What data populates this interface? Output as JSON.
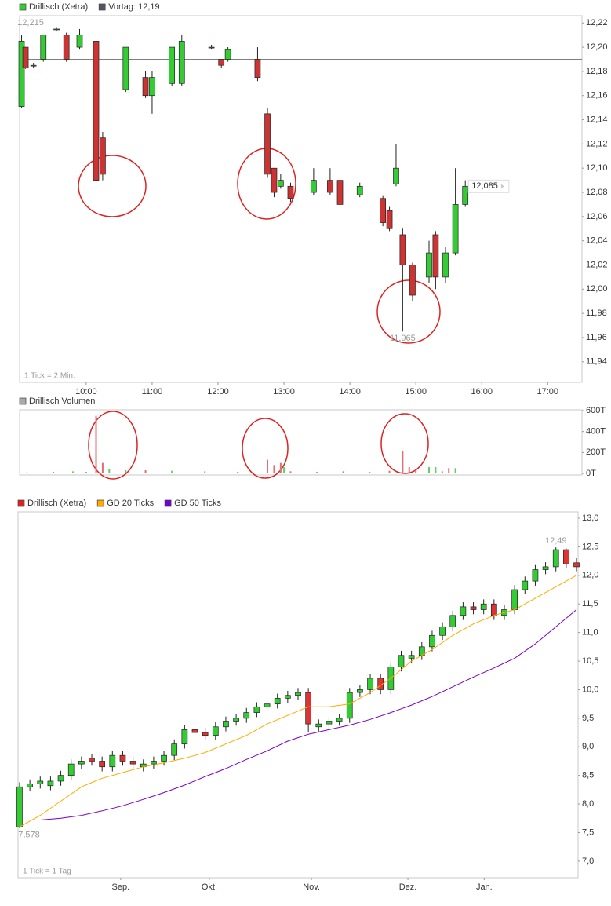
{
  "chart_data": [
    {
      "type": "candlestick",
      "legend": [
        {
          "label": "Drillisch (Xetra)",
          "color": "#33cc33"
        },
        {
          "label": "Vortag: 12,19",
          "color": "#555566"
        }
      ],
      "reference_line": 12.19,
      "note": "1 Tick = 2 Min.",
      "up_color": "#33cc33",
      "down_color": "#cc3333",
      "xlim": [
        8.99,
        17.52
      ],
      "xticks": [
        {
          "value": 10,
          "label": "10:00"
        },
        {
          "value": 11,
          "label": "11:00"
        },
        {
          "value": 12,
          "label": "12:00"
        },
        {
          "value": 13,
          "label": "13:00"
        },
        {
          "value": 14,
          "label": "14:00"
        },
        {
          "value": 15,
          "label": "15:00"
        },
        {
          "value": 16,
          "label": "16:00"
        },
        {
          "value": 17,
          "label": "17:00"
        }
      ],
      "ylim": [
        11.923,
        12.226
      ],
      "yticks": [
        {
          "value": 12.22,
          "label": "12,22"
        },
        {
          "value": 12.2,
          "label": "12,20"
        },
        {
          "value": 12.18,
          "label": "12,18"
        },
        {
          "value": 12.16,
          "label": "12,16"
        },
        {
          "value": 12.14,
          "label": "12,14"
        },
        {
          "value": 12.12,
          "label": "12,12"
        },
        {
          "value": 12.1,
          "label": "12,10"
        },
        {
          "value": 12.08,
          "label": "12,08"
        },
        {
          "value": 12.06,
          "label": "12,06"
        },
        {
          "value": 12.04,
          "label": "12,04"
        },
        {
          "value": 12.02,
          "label": "12,02"
        },
        {
          "value": 12.0,
          "label": "12,00"
        },
        {
          "value": 11.98,
          "label": "11,98"
        },
        {
          "value": 11.96,
          "label": "11,96"
        },
        {
          "value": 11.94,
          "label": "11,94"
        }
      ],
      "x": [
        9.02,
        9.08,
        9.2,
        9.35,
        9.55,
        9.7,
        9.9,
        10.15,
        10.25,
        10.6,
        10.9,
        11.0,
        11.3,
        11.45,
        11.9,
        12.05,
        12.15,
        12.6,
        12.75,
        12.85,
        12.95,
        13.1,
        13.45,
        13.7,
        13.85,
        14.15,
        14.5,
        14.6,
        14.7,
        14.8,
        14.95,
        15.2,
        15.3,
        15.45,
        15.6,
        15.75
      ],
      "open": [
        12.151,
        12.2,
        12.185,
        12.19,
        12.215,
        12.21,
        12.2,
        12.205,
        12.125,
        12.165,
        12.175,
        12.16,
        12.17,
        12.17,
        12.2,
        12.19,
        12.19,
        12.19,
        12.145,
        12.1,
        12.085,
        12.085,
        12.08,
        12.09,
        12.09,
        12.078,
        12.075,
        12.065,
        12.087,
        12.045,
        12.02,
        12.01,
        12.045,
        12.01,
        12.03,
        12.07
      ],
      "high": [
        12.21,
        12.2,
        12.187,
        12.21,
        12.216,
        12.212,
        12.215,
        12.21,
        12.13,
        12.2,
        12.18,
        12.18,
        12.2,
        12.21,
        12.202,
        12.19,
        12.2,
        12.2,
        12.15,
        12.1,
        12.095,
        12.088,
        12.1,
        12.1,
        12.092,
        12.088,
        12.077,
        12.068,
        12.12,
        12.05,
        12.022,
        12.04,
        12.048,
        12.035,
        12.1,
        12.09
      ],
      "low": [
        12.15,
        12.182,
        12.183,
        12.188,
        12.213,
        12.188,
        12.198,
        12.08,
        12.09,
        12.163,
        12.158,
        12.145,
        12.168,
        12.168,
        12.198,
        12.183,
        12.188,
        12.172,
        12.092,
        12.076,
        12.083,
        12.072,
        12.078,
        12.078,
        12.066,
        12.076,
        12.052,
        12.048,
        12.085,
        11.965,
        11.99,
        12.005,
        12.0,
        12.005,
        12.028,
        12.068
      ],
      "close": [
        12.205,
        12.183,
        12.185,
        12.21,
        12.215,
        12.19,
        12.21,
        12.09,
        12.095,
        12.2,
        12.16,
        12.175,
        12.2,
        12.205,
        12.2,
        12.185,
        12.198,
        12.175,
        12.095,
        12.08,
        12.09,
        12.075,
        12.09,
        12.08,
        12.07,
        12.085,
        12.055,
        12.05,
        12.1,
        12.02,
        11.995,
        12.03,
        12.01,
        12.03,
        12.07,
        12.085
      ],
      "annotations": [
        {
          "text": "12,215",
          "x": 9.15,
          "y": 12.215,
          "position": "above"
        },
        {
          "text": "11,965",
          "x": 14.8,
          "y": 11.965,
          "position": "below"
        },
        {
          "text": "12,085",
          "x": 15.75,
          "y": 12.085,
          "position": "right"
        }
      ]
    },
    {
      "type": "bar",
      "legend": [
        {
          "label": "Drillisch Volumen",
          "color": "#aaaaaa"
        }
      ],
      "xlim": [
        8.99,
        17.52
      ],
      "ylim": [
        0,
        600
      ],
      "yticks": [
        {
          "value": 600,
          "label": "600T"
        },
        {
          "value": 400,
          "label": "400T"
        },
        {
          "value": 200,
          "label": "200T"
        },
        {
          "value": 0,
          "label": "0T"
        }
      ],
      "x": [
        9.1,
        9.5,
        9.8,
        10.0,
        10.15,
        10.25,
        10.35,
        10.6,
        10.9,
        11.3,
        11.8,
        12.3,
        12.75,
        12.85,
        12.95,
        13.0,
        13.1,
        13.5,
        13.9,
        14.3,
        14.6,
        14.8,
        14.9,
        15.0,
        15.2,
        15.3,
        15.4,
        15.5,
        15.6
      ],
      "values": [
        10,
        15,
        20,
        15,
        550,
        100,
        40,
        30,
        30,
        25,
        20,
        15,
        130,
        80,
        100,
        60,
        20,
        15,
        20,
        15,
        25,
        210,
        60,
        30,
        60,
        60,
        20,
        50,
        50
      ],
      "colors": [
        "#66cc66",
        "#e07070",
        "#66cc66",
        "#66cc66",
        "#e07070",
        "#e07070",
        "#66cc66",
        "#66cc66",
        "#e07070",
        "#66cc66",
        "#66cc66",
        "#e07070",
        "#e07070",
        "#e07070",
        "#e07070",
        "#66cc66",
        "#e07070",
        "#66cc66",
        "#e07070",
        "#66cc66",
        "#e07070",
        "#e07070",
        "#e07070",
        "#e07070",
        "#66cc66",
        "#66cc66",
        "#e07070",
        "#e07070",
        "#66cc66"
      ]
    },
    {
      "type": "candlestick",
      "legend": [
        {
          "label": "Drillisch (Xetra)",
          "color": "#dd2222"
        },
        {
          "label": "GD 20 Ticks",
          "color": "#ffaa00"
        },
        {
          "label": "GD 50 Ticks",
          "color": "#7700cc"
        }
      ],
      "note": "1 Tick = 1 Tag",
      "up_color": "#33cc33",
      "down_color": "#dd3333",
      "xlim": [
        -0.3,
        108.3
      ],
      "xticks": [
        {
          "value": 19.6,
          "label": "Sep."
        },
        {
          "value": 36.8,
          "label": "Okt."
        },
        {
          "value": 56.6,
          "label": "Nov."
        },
        {
          "value": 75.3,
          "label": "Dez."
        },
        {
          "value": 90.1,
          "label": "Jan."
        }
      ],
      "ylim": [
        6.71,
        13.11
      ],
      "yticks": [
        {
          "value": 13.0,
          "label": "13,0"
        },
        {
          "value": 12.5,
          "label": "12,5"
        },
        {
          "value": 12.0,
          "label": "12,0"
        },
        {
          "value": 11.5,
          "label": "11,5"
        },
        {
          "value": 11.0,
          "label": "11,0"
        },
        {
          "value": 10.5,
          "label": "10,5"
        },
        {
          "value": 10.0,
          "label": "10,0"
        },
        {
          "value": 9.5,
          "label": "9,5"
        },
        {
          "value": 9.0,
          "label": "9,0"
        },
        {
          "value": 8.5,
          "label": "8,5"
        },
        {
          "value": 8.0,
          "label": "8,0"
        },
        {
          "value": 7.5,
          "label": "7,5"
        },
        {
          "value": 7.0,
          "label": "7,0"
        }
      ],
      "x": [
        0,
        2,
        4,
        6,
        8,
        10,
        12,
        14,
        16,
        18,
        20,
        22,
        24,
        26,
        28,
        30,
        32,
        34,
        36,
        38,
        40,
        42,
        44,
        46,
        48,
        50,
        52,
        54,
        56,
        58,
        60,
        62,
        64,
        66,
        68,
        70,
        72,
        74,
        76,
        78,
        80,
        82,
        84,
        86,
        88,
        90,
        92,
        94,
        96,
        98,
        100,
        102,
        104,
        106,
        108
      ],
      "open": [
        7.6,
        8.3,
        8.35,
        8.32,
        8.4,
        8.5,
        8.7,
        8.8,
        8.75,
        8.65,
        8.85,
        8.75,
        8.65,
        8.7,
        8.75,
        8.85,
        9.05,
        9.3,
        9.25,
        9.2,
        9.35,
        9.45,
        9.5,
        9.6,
        9.7,
        9.75,
        9.85,
        9.9,
        9.95,
        9.35,
        9.4,
        9.45,
        9.5,
        9.95,
        10.0,
        10.2,
        10.0,
        10.4,
        10.55,
        10.6,
        10.75,
        10.95,
        11.1,
        11.3,
        11.45,
        11.4,
        11.5,
        11.3,
        11.4,
        11.75,
        11.9,
        12.1,
        12.15,
        12.45,
        12.22
      ],
      "high": [
        8.38,
        8.43,
        8.48,
        8.48,
        8.58,
        8.78,
        8.83,
        8.88,
        8.83,
        8.93,
        8.93,
        8.83,
        8.78,
        8.83,
        8.93,
        9.13,
        9.38,
        9.38,
        9.33,
        9.43,
        9.53,
        9.58,
        9.68,
        9.78,
        9.83,
        9.93,
        9.98,
        10.03,
        10.03,
        9.48,
        9.53,
        9.58,
        10.03,
        10.08,
        10.28,
        10.28,
        10.48,
        10.68,
        10.68,
        10.83,
        11.03,
        11.18,
        11.38,
        11.53,
        11.53,
        11.58,
        11.58,
        11.48,
        11.83,
        11.98,
        12.18,
        12.23,
        12.49,
        12.47,
        12.3
      ],
      "low": [
        7.578,
        8.22,
        8.27,
        8.24,
        8.32,
        8.42,
        8.62,
        8.67,
        8.57,
        8.57,
        8.67,
        8.62,
        8.57,
        8.62,
        8.67,
        8.77,
        8.97,
        9.17,
        9.12,
        9.12,
        9.27,
        9.37,
        9.42,
        9.52,
        9.62,
        9.67,
        9.77,
        9.82,
        9.25,
        9.27,
        9.32,
        9.37,
        9.42,
        9.87,
        9.92,
        9.92,
        9.92,
        10.32,
        10.47,
        10.52,
        10.67,
        10.87,
        11.02,
        11.22,
        11.32,
        11.32,
        11.22,
        11.22,
        11.32,
        11.67,
        11.82,
        12.02,
        12.07,
        12.12,
        12.07
      ],
      "close": [
        8.3,
        8.35,
        8.4,
        8.4,
        8.5,
        8.7,
        8.75,
        8.75,
        8.65,
        8.85,
        8.75,
        8.7,
        8.7,
        8.75,
        8.85,
        9.05,
        9.3,
        9.25,
        9.2,
        9.35,
        9.45,
        9.5,
        9.6,
        9.7,
        9.75,
        9.85,
        9.9,
        9.95,
        9.4,
        9.4,
        9.45,
        9.5,
        9.95,
        10.0,
        10.2,
        10.0,
        10.4,
        10.6,
        10.6,
        10.75,
        10.95,
        11.1,
        11.3,
        11.45,
        11.4,
        11.5,
        11.3,
        11.4,
        11.75,
        11.9,
        12.1,
        12.15,
        12.45,
        12.2,
        12.15
      ],
      "series": [
        {
          "name": "GD 20 Ticks",
          "color": "#ffaa00",
          "x": [
            0,
            4,
            8,
            12,
            16,
            20,
            24,
            28,
            32,
            36,
            40,
            44,
            48,
            52,
            56,
            60,
            64,
            68,
            72,
            76,
            80,
            84,
            88,
            92,
            96,
            100,
            104,
            108
          ],
          "values": [
            7.6,
            7.8,
            8.05,
            8.3,
            8.45,
            8.55,
            8.65,
            8.72,
            8.8,
            8.9,
            9.05,
            9.2,
            9.4,
            9.55,
            9.7,
            9.7,
            9.75,
            9.95,
            10.2,
            10.5,
            10.7,
            10.95,
            11.15,
            11.3,
            11.4,
            11.6,
            11.8,
            12.0
          ]
        },
        {
          "name": "GD 50 Ticks",
          "color": "#7700cc",
          "x": [
            0,
            4,
            8,
            12,
            16,
            20,
            24,
            28,
            32,
            36,
            40,
            44,
            48,
            52,
            56,
            60,
            64,
            68,
            72,
            76,
            80,
            84,
            88,
            92,
            96,
            100,
            104,
            108
          ],
          "values": [
            7.72,
            7.72,
            7.75,
            7.8,
            7.88,
            7.97,
            8.08,
            8.2,
            8.33,
            8.48,
            8.62,
            8.78,
            8.93,
            9.1,
            9.22,
            9.3,
            9.38,
            9.48,
            9.6,
            9.73,
            9.88,
            10.05,
            10.22,
            10.38,
            10.55,
            10.8,
            11.1,
            11.4
          ]
        }
      ],
      "annotations": [
        {
          "text": "12,49",
          "x": 104,
          "y": 12.49,
          "position": "above"
        },
        {
          "text": "7,578",
          "x": 0,
          "y": 7.578,
          "position": "below"
        }
      ]
    }
  ]
}
